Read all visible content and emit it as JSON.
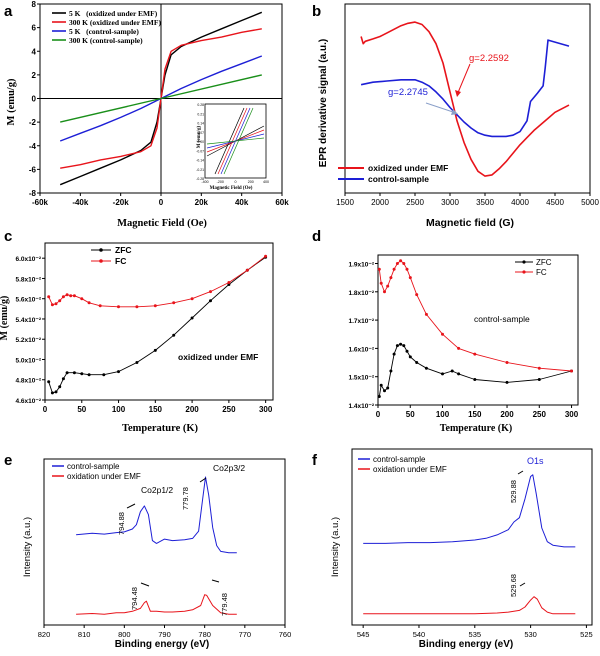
{
  "colors": {
    "black": "#000000",
    "red": "#e8141b",
    "blue": "#1d1fd6",
    "green": "#1a8f1a",
    "axis": "#000000"
  },
  "chart_data": [
    {
      "panel": "a",
      "type": "line",
      "xlabel": "Magnetic Field (Oe)",
      "ylabel": "M (emu/g)",
      "xlim": [
        -60000,
        60000
      ],
      "ylim": [
        -8,
        8
      ],
      "xticks": [
        -60000,
        -40000,
        -20000,
        0,
        20000,
        40000,
        60000
      ],
      "xtick_labels": [
        "-60k",
        "-40k",
        "-20k",
        "0",
        "20k",
        "40k",
        "60k"
      ],
      "yticks": [
        -8,
        -6,
        -4,
        -2,
        0,
        2,
        4,
        6,
        8
      ],
      "ytick_labels": [
        "-8",
        "-6",
        "-4",
        "-2",
        "0",
        "2",
        "4",
        "6",
        "8"
      ],
      "legend_position": "top-left",
      "series": [
        {
          "name": "5 K   (oxidized under EMF)",
          "color": "#000000",
          "x": [
            -50000,
            -40000,
            -30000,
            -20000,
            -10000,
            -5000,
            -2000,
            0,
            2000,
            5000,
            10000,
            20000,
            30000,
            40000,
            50000
          ],
          "y": [
            -7.3,
            -6.6,
            -5.9,
            -5.2,
            -4.4,
            -3.7,
            -2.0,
            0,
            2.0,
            3.7,
            4.4,
            5.2,
            5.9,
            6.6,
            7.3
          ]
        },
        {
          "name": "300 K (oxidized under EMF)",
          "color": "#e8141b",
          "x": [
            -50000,
            -40000,
            -30000,
            -20000,
            -10000,
            -5000,
            -2000,
            0,
            2000,
            5000,
            10000,
            20000,
            30000,
            40000,
            50000
          ],
          "y": [
            -5.9,
            -5.6,
            -5.2,
            -4.9,
            -4.5,
            -4.0,
            -2.5,
            0,
            2.5,
            4.0,
            4.5,
            4.9,
            5.2,
            5.6,
            5.9
          ]
        },
        {
          "name": "5 K   (control-sample)",
          "color": "#1d1fd6",
          "x": [
            -50000,
            -40000,
            -30000,
            -20000,
            -10000,
            0,
            10000,
            20000,
            30000,
            40000,
            50000
          ],
          "y": [
            -3.6,
            -2.95,
            -2.3,
            -1.6,
            -0.85,
            0,
            0.85,
            1.6,
            2.3,
            2.95,
            3.6
          ]
        },
        {
          "name": "300 K (control-sample)",
          "color": "#1a8f1a",
          "x": [
            -50000,
            0,
            50000
          ],
          "y": [
            -2.0,
            0,
            2.0
          ]
        }
      ],
      "inset": {
        "xlabel": "Magnetic Field (Oe)",
        "ylabel": "M (emu/g)",
        "xlim": [
          -400,
          400
        ],
        "ylim": [
          -0.28,
          0.28
        ],
        "xtick_labels": [
          "-400",
          "-200",
          "0",
          "200",
          "400"
        ],
        "ytick_labels": [
          "0.28",
          "0.21",
          "0.14",
          "0.07",
          "0.00",
          "-0.07",
          "-0.14",
          "-0.21",
          "-0.28"
        ]
      }
    },
    {
      "panel": "b",
      "type": "line",
      "xlabel": "Magnetic field (G)",
      "ylabel": "EPR derivative signal (a.u.)",
      "xlim": [
        1500,
        5000
      ],
      "xticks": [
        1500,
        2000,
        2500,
        3000,
        3500,
        4000,
        4500,
        5000
      ],
      "xtick_labels": [
        "1500",
        "2000",
        "2500",
        "3000",
        "3500",
        "4000",
        "4500",
        "5000"
      ],
      "legend_position": "bottom-left",
      "annotations": [
        {
          "text": "g=2.2592",
          "color": "#e8141b",
          "x": 3000
        },
        {
          "text": "g=2.2745",
          "color": "#1d1fd6",
          "x": 2980
        }
      ],
      "series": [
        {
          "name": "oxidized under EMF",
          "color": "#e8141b",
          "x": [
            1730,
            1760,
            1790,
            1900,
            2000,
            2100,
            2200,
            2300,
            2400,
            2500,
            2600,
            2700,
            2800,
            2900,
            3000,
            3100,
            3200,
            3300,
            3400,
            3500,
            3600,
            3700,
            3800,
            3900,
            4000,
            4100,
            4200,
            4300,
            4400,
            4500,
            4700
          ],
          "y": [
            0.88,
            0.82,
            0.84,
            0.86,
            0.88,
            0.91,
            0.94,
            0.97,
            0.99,
            1.0,
            0.98,
            0.92,
            0.82,
            0.66,
            0.42,
            0.18,
            0.0,
            -0.14,
            -0.24,
            -0.28,
            -0.27,
            -0.22,
            -0.16,
            -0.09,
            -0.02,
            0.04,
            0.1,
            0.15,
            0.2,
            0.25,
            0.31
          ]
        },
        {
          "name": "control-sample",
          "color": "#1d1fd6",
          "x": [
            1730,
            1900,
            2100,
            2300,
            2500,
            2600,
            2700,
            2800,
            2900,
            3000,
            3100,
            3200,
            3300,
            3400,
            3500,
            3600,
            3700,
            3800,
            3900,
            4000,
            4100,
            4150,
            4250,
            4330,
            4360,
            4400,
            4700
          ],
          "y": [
            0.48,
            0.5,
            0.51,
            0.52,
            0.52,
            0.5,
            0.47,
            0.42,
            0.36,
            0.29,
            0.23,
            0.17,
            0.12,
            0.08,
            0.06,
            0.05,
            0.05,
            0.05,
            0.06,
            0.09,
            0.18,
            0.34,
            0.41,
            0.47,
            0.62,
            0.85,
            0.8
          ]
        }
      ]
    },
    {
      "panel": "c",
      "type": "line",
      "xlabel": "Temperature (K)",
      "ylabel": "M (emu/g)",
      "xlim": [
        0,
        310
      ],
      "ylim": [
        0.046,
        0.0615
      ],
      "xticks": [
        0,
        50,
        100,
        150,
        200,
        250,
        300
      ],
      "xtick_labels": [
        "0",
        "50",
        "100",
        "150",
        "200",
        "250",
        "300"
      ],
      "yticks": [
        0.046,
        0.048,
        0.05,
        0.052,
        0.054,
        0.056,
        0.058,
        0.06
      ],
      "ytick_labels": [
        "4.6x10⁻²",
        "4.8x10⁻²",
        "5.0x10⁻²",
        "5.2x10⁻²",
        "5.4x10⁻²",
        "5.6x10⁻²",
        "5.8x10⁻²",
        "6.0x10⁻²"
      ],
      "annotations": [
        {
          "text": "oxidized under EMF"
        }
      ],
      "legend_position": "top-left",
      "series": [
        {
          "name": "ZFC",
          "color": "#000000",
          "x": [
            5,
            10,
            15,
            20,
            25,
            30,
            40,
            50,
            60,
            80,
            100,
            125,
            150,
            175,
            200,
            225,
            250,
            275,
            300
          ],
          "y": [
            0.0478,
            0.0467,
            0.0468,
            0.0473,
            0.0481,
            0.0487,
            0.0487,
            0.0486,
            0.0485,
            0.0485,
            0.0488,
            0.0497,
            0.0509,
            0.0524,
            0.0541,
            0.0558,
            0.0574,
            0.0588,
            0.0601
          ]
        },
        {
          "name": "FC",
          "color": "#e8141b",
          "x": [
            5,
            10,
            15,
            20,
            25,
            30,
            35,
            40,
            50,
            60,
            75,
            100,
            125,
            150,
            175,
            200,
            225,
            250,
            275,
            300
          ],
          "y": [
            0.0562,
            0.0554,
            0.0555,
            0.0558,
            0.0562,
            0.0564,
            0.0563,
            0.0563,
            0.056,
            0.0556,
            0.0553,
            0.0552,
            0.0552,
            0.0553,
            0.0556,
            0.056,
            0.0567,
            0.0576,
            0.0588,
            0.0602
          ]
        }
      ]
    },
    {
      "panel": "d",
      "type": "line",
      "xlabel": "Temperature (K)",
      "ylabel": "",
      "xlim": [
        0,
        310
      ],
      "ylim": [
        0.014,
        0.0193
      ],
      "xticks": [
        0,
        50,
        100,
        150,
        200,
        250,
        300
      ],
      "xtick_labels": [
        "0",
        "50",
        "100",
        "150",
        "200",
        "250",
        "300"
      ],
      "yticks": [
        0.014,
        0.015,
        0.016,
        0.017,
        0.018,
        0.019
      ],
      "ytick_labels": [
        "1.4x10⁻²",
        "1.5x10⁻²",
        "1.6x10⁻²",
        "1.7x10⁻²",
        "1.8x10⁻²",
        "1.9x10⁻²"
      ],
      "annotations": [
        {
          "text": "control-sample"
        }
      ],
      "legend_position": "top-right",
      "series": [
        {
          "name": "ZFC",
          "color": "#000000",
          "x": [
            2,
            5,
            10,
            15,
            20,
            25,
            30,
            35,
            40,
            45,
            50,
            60,
            75,
            100,
            115,
            125,
            150,
            200,
            250,
            300
          ],
          "y": [
            0.0143,
            0.0147,
            0.0145,
            0.0146,
            0.0152,
            0.0158,
            0.0161,
            0.01615,
            0.0161,
            0.0159,
            0.0157,
            0.0155,
            0.0153,
            0.0151,
            0.0152,
            0.0151,
            0.0149,
            0.0148,
            0.0149,
            0.0152
          ]
        },
        {
          "name": "FC",
          "color": "#e8141b",
          "x": [
            2,
            5,
            10,
            15,
            20,
            25,
            30,
            35,
            40,
            45,
            50,
            60,
            75,
            100,
            125,
            150,
            200,
            250,
            300
          ],
          "y": [
            0.0188,
            0.0183,
            0.018,
            0.0182,
            0.0185,
            0.0188,
            0.019,
            0.0191,
            0.019,
            0.0188,
            0.0185,
            0.0179,
            0.0172,
            0.0165,
            0.016,
            0.0158,
            0.0155,
            0.0153,
            0.0152
          ]
        }
      ]
    },
    {
      "panel": "e",
      "type": "line",
      "xlabel": "Binding energy (eV)",
      "ylabel": "Intensity (a.u.)",
      "xlim": [
        820,
        760
      ],
      "x_reversed": true,
      "xticks": [
        820,
        810,
        800,
        790,
        780,
        770,
        760
      ],
      "xtick_labels": [
        "820",
        "810",
        "800",
        "790",
        "780",
        "770",
        "760"
      ],
      "legend_position": "top-left",
      "annotations": [
        {
          "text": "Co2p1/2"
        },
        {
          "text": "Co2p3/2"
        },
        {
          "text": "794.88"
        },
        {
          "text": "779.78"
        },
        {
          "text": "794.48"
        },
        {
          "text": "779.48"
        }
      ],
      "series": [
        {
          "name": "control-sample",
          "color": "#1d1fd6",
          "x": [
            812,
            808,
            805,
            802,
            800,
            798,
            797,
            796,
            795,
            794,
            793,
            792,
            790,
            788,
            785,
            783,
            781.5,
            780.5,
            779.8,
            779,
            778,
            777,
            776,
            774,
            772
          ],
          "y": [
            0.2,
            0.22,
            0.21,
            0.23,
            0.24,
            0.28,
            0.34,
            0.52,
            0.6,
            0.48,
            0.12,
            0.08,
            0.14,
            0.12,
            0.13,
            0.15,
            0.25,
            0.7,
            1.0,
            0.75,
            0.3,
            0.05,
            -0.03,
            -0.05,
            -0.05
          ]
        },
        {
          "name": "oxidation under EMF",
          "color": "#e8141b",
          "x": [
            812,
            808,
            805,
            802,
            800,
            798,
            796,
            795,
            794.5,
            793.5,
            792,
            790,
            788,
            785,
            783,
            781,
            780,
            779.5,
            778,
            776,
            774,
            772
          ],
          "y": [
            -0.9,
            -0.89,
            -0.9,
            -0.88,
            -0.88,
            -0.86,
            -0.82,
            -0.74,
            -0.72,
            -0.86,
            -0.86,
            -0.87,
            -0.87,
            -0.86,
            -0.84,
            -0.78,
            -0.63,
            -0.64,
            -0.78,
            -0.88,
            -0.9,
            -0.9
          ]
        }
      ]
    },
    {
      "panel": "f",
      "type": "line",
      "xlabel": "Binding energy (eV)",
      "ylabel": "Intensity (a.u.)",
      "xlim": [
        546,
        524.5
      ],
      "x_reversed": true,
      "xticks": [
        545,
        540,
        535,
        530,
        525
      ],
      "xtick_labels": [
        "545",
        "540",
        "535",
        "530",
        "525"
      ],
      "legend_position": "top-left",
      "annotations": [
        {
          "text": "O1s"
        },
        {
          "text": "529.88"
        },
        {
          "text": "529.68"
        }
      ],
      "series": [
        {
          "name": "control-sample",
          "color": "#1d1fd6",
          "x": [
            545,
            543,
            541,
            539,
            537,
            535,
            534,
            533,
            532,
            531.5,
            531,
            530.5,
            530,
            529.8,
            529.5,
            529,
            528.5,
            528,
            527,
            526
          ],
          "y": [
            0.2,
            0.2,
            0.21,
            0.21,
            0.22,
            0.24,
            0.26,
            0.3,
            0.36,
            0.45,
            0.5,
            0.72,
            0.98,
            1.0,
            0.78,
            0.38,
            0.22,
            0.18,
            0.16,
            0.16
          ]
        },
        {
          "name": "oxidation under EMF",
          "color": "#e8141b",
          "x": [
            545,
            540,
            535,
            533,
            532,
            531,
            530.5,
            530,
            529.7,
            529.4,
            529,
            528.5,
            528,
            526
          ],
          "y": [
            -0.62,
            -0.62,
            -0.62,
            -0.61,
            -0.6,
            -0.58,
            -0.54,
            -0.46,
            -0.42,
            -0.45,
            -0.55,
            -0.6,
            -0.62,
            -0.62
          ]
        }
      ]
    }
  ],
  "panel_labels": [
    "a",
    "b",
    "c",
    "d",
    "e",
    "f"
  ],
  "text": {
    "a": {
      "xlabel": "Magnetic Field (Oe)",
      "ylabel": "M (emu/g)",
      "legend": [
        "5 K   (oxidized under EMF)",
        "300 K (oxidized under EMF)",
        "5 K   (control-sample)",
        "300 K (control-sample)"
      ],
      "inset_xlabel": "Magnetic Field (Oe)",
      "inset_ylabel": "M (emu/g)"
    },
    "b": {
      "xlabel": "Magnetic field (G)",
      "ylabel": "EPR derivative signal (a.u.)",
      "legend": [
        "oxidized under EMF",
        "control-sample"
      ],
      "g_red": "g=2.2592",
      "g_blue": "g=2.2745"
    },
    "c": {
      "xlabel": "Temperature (K)",
      "ylabel": "M (emu/g)",
      "legend": [
        "ZFC",
        "FC"
      ],
      "note": "oxidized under EMF"
    },
    "d": {
      "xlabel": "Temperature (K)",
      "legend": [
        "ZFC",
        "FC"
      ],
      "note": "control-sample"
    },
    "e": {
      "xlabel": "Binding energy (eV)",
      "ylabel": "Intensity (a.u.)",
      "legend": [
        "control-sample",
        "oxidation under EMF"
      ],
      "peak1": "Co2p1/2",
      "peak2": "Co2p3/2",
      "v1": "794.88",
      "v2": "779.78",
      "v3": "794.48",
      "v4": "779.48"
    },
    "f": {
      "xlabel": "Binding energy (eV)",
      "ylabel": "Intensity (a.u.)",
      "legend": [
        "control-sample",
        "oxidation under EMF"
      ],
      "peak": "O1s",
      "v1": "529.88",
      "v2": "529.68"
    }
  }
}
